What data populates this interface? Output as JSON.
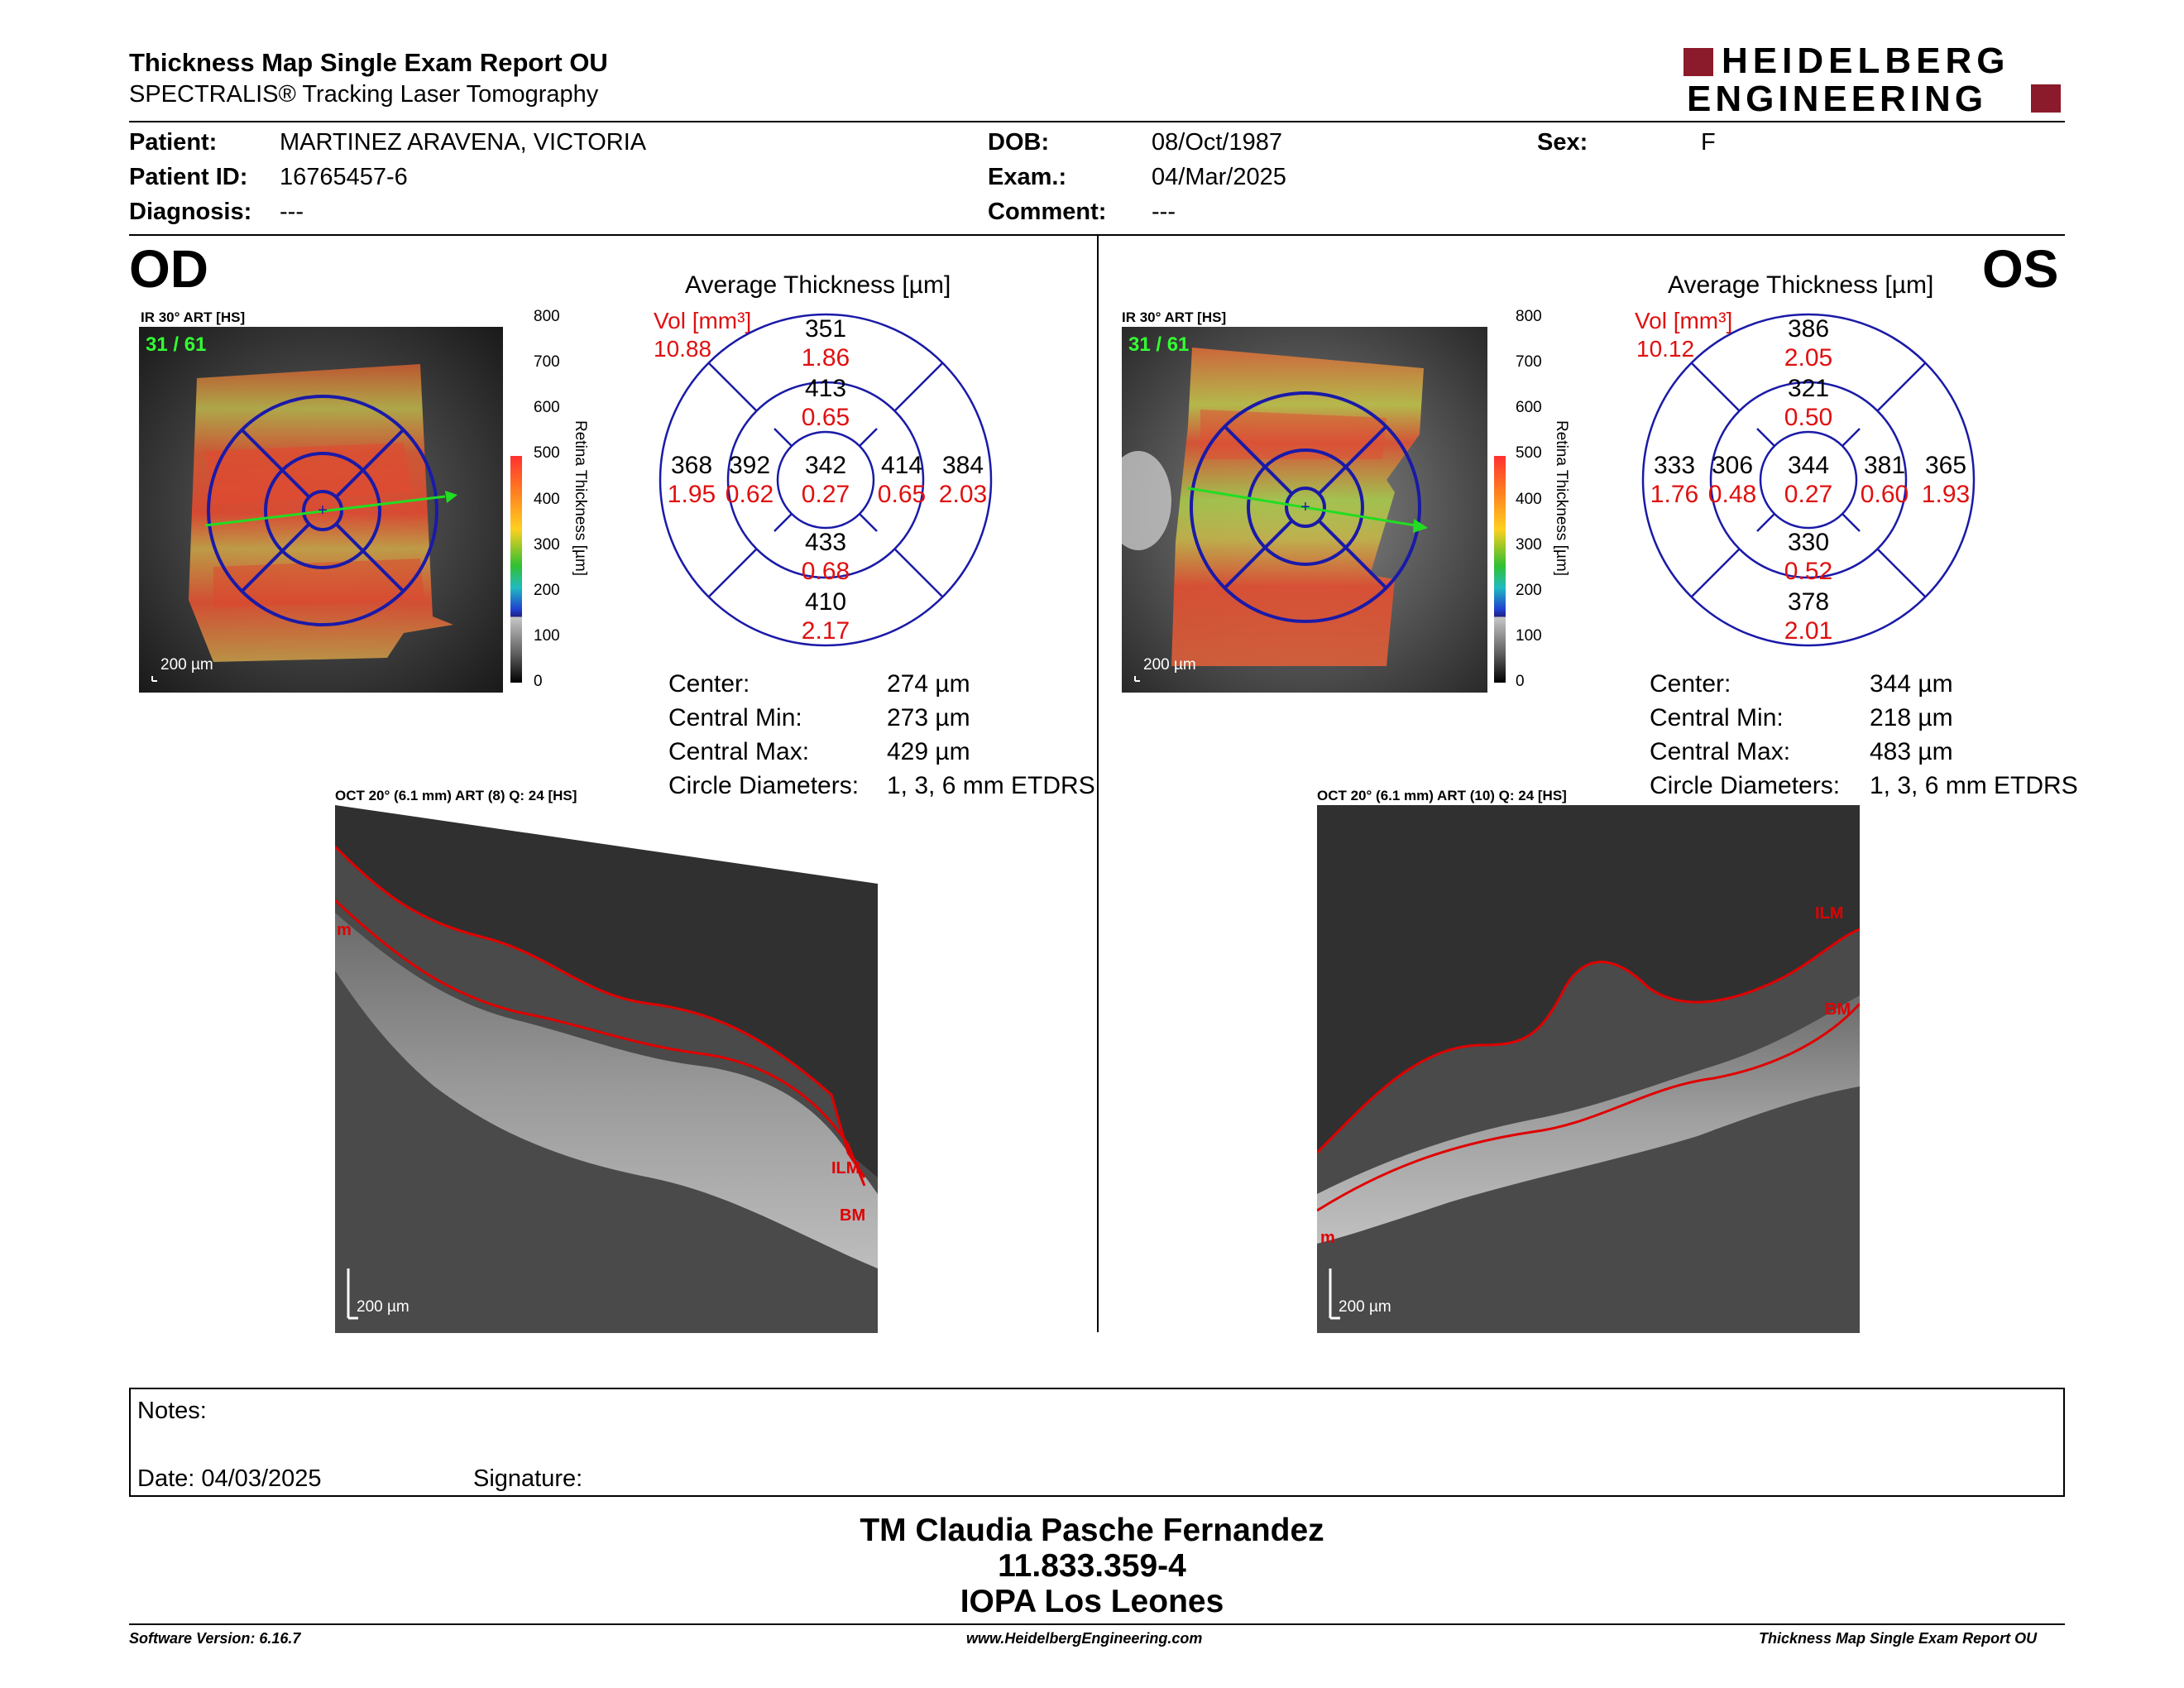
{
  "header": {
    "title": "Thickness Map Single Exam Report OU",
    "subtitle": "SPECTRALIS® Tracking Laser Tomography",
    "logo_line1": "HEIDELBERG",
    "logo_line2": "ENGINEERING"
  },
  "patient": {
    "patient_label": "Patient:",
    "patient_value": "MARTINEZ ARAVENA, VICTORIA",
    "id_label": "Patient ID:",
    "id_value": "16765457-6",
    "diagnosis_label": "Diagnosis:",
    "diagnosis_value": "---",
    "dob_label": "DOB:",
    "dob_value": "08/Oct/1987",
    "exam_label": "Exam.:",
    "exam_value": "04/Mar/2025",
    "comment_label": "Comment:",
    "comment_value": "---",
    "sex_label": "Sex:",
    "sex_value": "F"
  },
  "colors": {
    "etdrs_grid": "#1a1aa8",
    "volume_red": "#e01010",
    "brand": "#8b1a2a",
    "segmentation": "#e00000"
  },
  "od": {
    "eye": "OD",
    "ir_label": "IR 30° ART [HS]",
    "counter": "31 / 61",
    "scale": "200 µm",
    "colorbar_title": "Retina Thickness [µm]",
    "colorbar_ticks": [
      "800",
      "700",
      "600",
      "500",
      "400",
      "300",
      "200",
      "100",
      "0"
    ],
    "avg_title": "Average Thickness [µm]",
    "vol_label": "Vol [mm³]",
    "vol_total": "10.88",
    "sectors": {
      "center": {
        "t": "342",
        "v": "0.27"
      },
      "inner_sup": {
        "t": "413",
        "v": "0.65"
      },
      "inner_inf": {
        "t": "433",
        "v": "0.68"
      },
      "inner_left": {
        "t": "392",
        "v": "0.62"
      },
      "inner_right": {
        "t": "414",
        "v": "0.65"
      },
      "outer_sup": {
        "t": "351",
        "v": "1.86"
      },
      "outer_inf": {
        "t": "410",
        "v": "2.17"
      },
      "outer_left": {
        "t": "368",
        "v": "1.95"
      },
      "outer_right": {
        "t": "384",
        "v": "2.03"
      }
    },
    "stats": [
      {
        "label": "Center:",
        "value": "274 µm"
      },
      {
        "label": "Central Min:",
        "value": "273 µm"
      },
      {
        "label": "Central Max:",
        "value": "429 µm"
      },
      {
        "label": "Circle Diameters:",
        "value": "1, 3, 6 mm ETDRS"
      }
    ],
    "oct_label": "OCT 20° (6.1 mm) ART (8) Q: 24 [HS]",
    "oct_scale": "200 µm",
    "ilm": "ILM",
    "bm": "BM",
    "m_mark": "m"
  },
  "os": {
    "eye": "OS",
    "ir_label": "IR 30° ART [HS]",
    "counter": "31 / 61",
    "scale": "200 µm",
    "colorbar_title": "Retina Thickness [µm]",
    "colorbar_ticks": [
      "800",
      "700",
      "600",
      "500",
      "400",
      "300",
      "200",
      "100",
      "0"
    ],
    "avg_title": "Average Thickness [µm]",
    "vol_label": "Vol [mm³]",
    "vol_total": "10.12",
    "sectors": {
      "center": {
        "t": "344",
        "v": "0.27"
      },
      "inner_sup": {
        "t": "321",
        "v": "0.50"
      },
      "inner_inf": {
        "t": "330",
        "v": "0.52"
      },
      "inner_left": {
        "t": "306",
        "v": "0.48"
      },
      "inner_right": {
        "t": "381",
        "v": "0.60"
      },
      "outer_sup": {
        "t": "386",
        "v": "2.05"
      },
      "outer_inf": {
        "t": "378",
        "v": "2.01"
      },
      "outer_left": {
        "t": "333",
        "v": "1.76"
      },
      "outer_right": {
        "t": "365",
        "v": "1.93"
      }
    },
    "stats": [
      {
        "label": "Center:",
        "value": "344 µm"
      },
      {
        "label": "Central Min:",
        "value": "218 µm"
      },
      {
        "label": "Central Max:",
        "value": "483 µm"
      },
      {
        "label": "Circle Diameters:",
        "value": "1, 3, 6 mm ETDRS"
      }
    ],
    "oct_label": "OCT 20° (6.1 mm) ART (10) Q: 24 [HS]",
    "oct_scale": "200 µm",
    "ilm": "ILM",
    "bm": "BM",
    "m_mark": "m"
  },
  "notes": {
    "notes_label": "Notes:",
    "date_label": "Date: 04/03/2025",
    "signature_label": "Signature:"
  },
  "signature_block": {
    "line1": "TM Claudia Pasche Fernandez",
    "line2": "11.833.359-4",
    "line3": "IOPA Los Leones"
  },
  "footer": {
    "software": "Software Version: 6.16.7",
    "website": "www.HeidelbergEngineering.com",
    "report": "Thickness Map Single Exam Report OU"
  }
}
